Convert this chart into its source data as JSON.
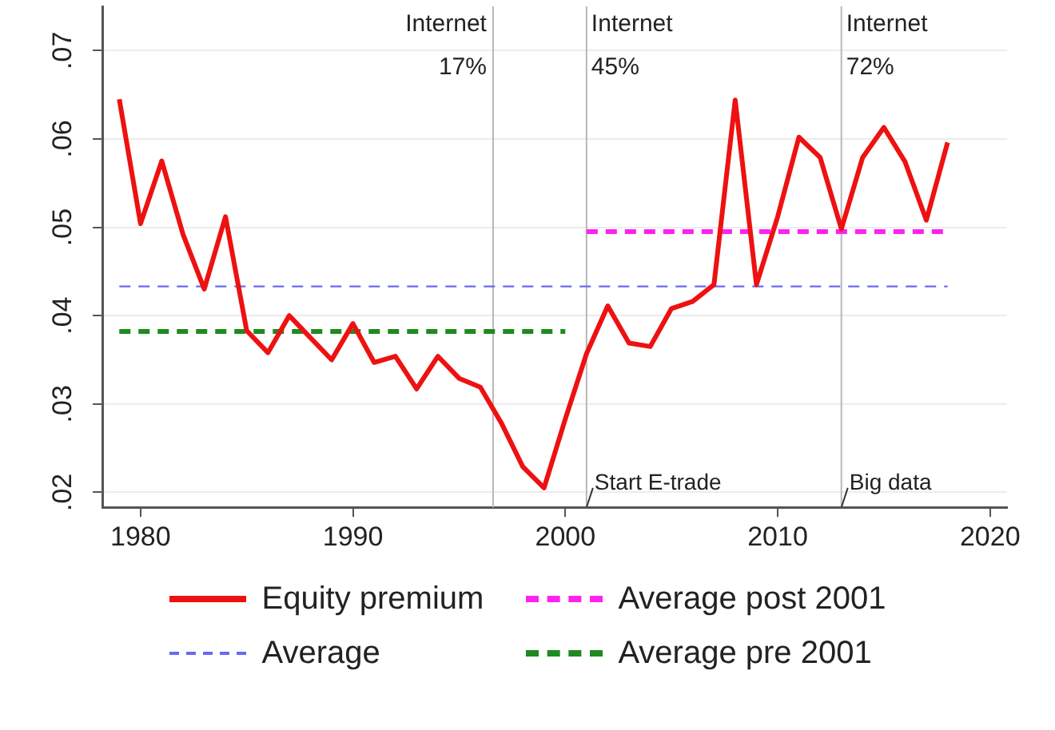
{
  "chart_data": {
    "type": "line",
    "x": [
      1979,
      1980,
      1981,
      1982,
      1983,
      1984,
      1985,
      1986,
      1987,
      1988,
      1989,
      1990,
      1991,
      1992,
      1993,
      1994,
      1995,
      1996,
      1997,
      1998,
      1999,
      2000,
      2001,
      2002,
      2003,
      2004,
      2005,
      2006,
      2007,
      2008,
      2009,
      2010,
      2011,
      2012,
      2013,
      2014,
      2015,
      2016,
      2017,
      2018
    ],
    "series": [
      {
        "name": "Equity premium",
        "color": "#ee1111",
        "line_style": "solid",
        "values": [
          0.0645,
          0.0504,
          0.0575,
          0.0492,
          0.043,
          0.0512,
          0.0383,
          0.0358,
          0.04,
          0.0375,
          0.035,
          0.0391,
          0.0347,
          0.0354,
          0.0317,
          0.0354,
          0.0329,
          0.0319,
          0.0278,
          0.0229,
          0.0205,
          0.0283,
          0.0357,
          0.0411,
          0.0369,
          0.0365,
          0.0408,
          0.0416,
          0.0435,
          0.0644,
          0.0435,
          0.0512,
          0.0602,
          0.0579,
          0.0498,
          0.0579,
          0.0613,
          0.0574,
          0.0508,
          0.0596
        ]
      },
      {
        "name": "Average",
        "color": "#6a6af0",
        "line_style": "dashed",
        "x": [
          1979,
          2018
        ],
        "values": [
          0.0433,
          0.0433
        ]
      },
      {
        "name": "Average post 2001",
        "color": "#ff22ee",
        "line_style": "dashed",
        "x": [
          2001,
          2018
        ],
        "values": [
          0.0495,
          0.0495
        ]
      },
      {
        "name": "Average pre 2001",
        "color": "#1f8a1f",
        "line_style": "dashed",
        "x": [
          1979,
          2000
        ],
        "values": [
          0.0382,
          0.0382
        ]
      }
    ],
    "xlim": [
      1978.2,
      2020.8
    ],
    "xticks": [
      1980,
      1990,
      2000,
      2010,
      2020
    ],
    "ylim": [
      0.0183,
      0.075
    ],
    "yticks": [
      {
        "value": 0.02,
        "label": ".02"
      },
      {
        "value": 0.03,
        "label": ".03"
      },
      {
        "value": 0.04,
        "label": ".04"
      },
      {
        "value": 0.05,
        "label": ".05"
      },
      {
        "value": 0.06,
        "label": ".06"
      },
      {
        "value": 0.07,
        "label": ".07"
      }
    ],
    "grid": "y",
    "legend": "bottom",
    "marker": "none",
    "ref_lines": [
      {
        "axis": "x",
        "value": 1996.6,
        "label": "Internet 17%",
        "color": "#b8b8b8"
      },
      {
        "axis": "x",
        "value": 2001,
        "label": "Internet 45%",
        "color": "#b8b8b8"
      },
      {
        "axis": "x",
        "value": 2013,
        "label": "Internet 72%",
        "color": "#b8b8b8"
      }
    ],
    "annotations": [
      {
        "text": "Start E-trade",
        "x": 2001,
        "y": 0.0205
      },
      {
        "text": "Big data",
        "x": 2013,
        "y": 0.0205
      }
    ]
  }
}
